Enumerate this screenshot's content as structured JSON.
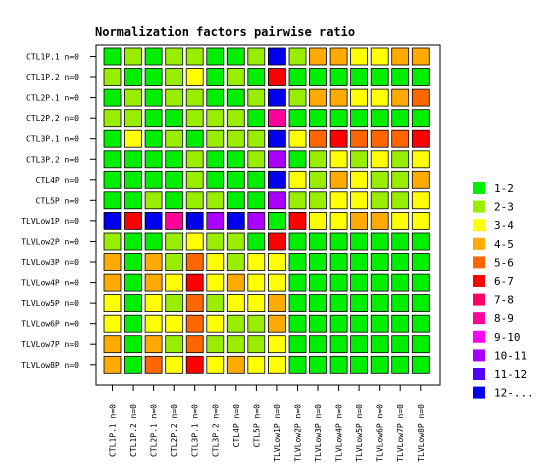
{
  "chart_data": {
    "type": "heatmap",
    "title": "Normalization factors pairwise ratio",
    "rows": [
      "CTL1P.1 n=0",
      "CTL1P.2 n=0",
      "CTL2P.1 n=0",
      "CTL2P.2 n=0",
      "CTL3P.1 n=0",
      "CTL3P.2 n=0",
      "CTL4P n=0",
      "CTL5P n=0",
      "TLVLow1P n=0",
      "TLVLow2P n=0",
      "TLVLow3P n=0",
      "TLVLow4P n=0",
      "TLVLow5P n=0",
      "TLVLow6P n=0",
      "TLVLow7P n=0",
      "TLVLow8P n=0"
    ],
    "columns": [
      "CTL1P.1 n=0",
      "CTL1P.2 n=0",
      "CTL2P.1 n=0",
      "CTL2P.2 n=0",
      "CTL3P.1 n=0",
      "CTL3P.2 n=0",
      "CTL4P n=0",
      "CTL5P n=0",
      "TLVLow1P n=0",
      "TLVLow2P n=0",
      "TLVLow3P n=0",
      "TLVLow4P n=0",
      "TLVLow5P n=0",
      "TLVLow6P n=0",
      "TLVLow7P n=0",
      "TLVLow8P n=0"
    ],
    "legend": {
      "position": "right",
      "bins": [
        {
          "label": "1-2",
          "color": "#00ee00"
        },
        {
          "label": "2-3",
          "color": "#99ee00"
        },
        {
          "label": "3-4",
          "color": "#ffff00"
        },
        {
          "label": "4-5",
          "color": "#ffaa00"
        },
        {
          "label": "5-6",
          "color": "#ff6600"
        },
        {
          "label": "6-7",
          "color": "#ff0000"
        },
        {
          "label": "7-8",
          "color": "#ff0066"
        },
        {
          "label": "8-9",
          "color": "#ff0099"
        },
        {
          "label": "9-10",
          "color": "#ff00ff"
        },
        {
          "label": "10-11",
          "color": "#aa00ff"
        },
        {
          "label": "11-12",
          "color": "#5500ff"
        },
        {
          "label": "12-...",
          "color": "#0000ee"
        }
      ]
    },
    "bin_index_matrix": [
      [
        0,
        1,
        0,
        1,
        1,
        0,
        0,
        1,
        11,
        1,
        3,
        3,
        2,
        2,
        3,
        3
      ],
      [
        1,
        0,
        0,
        1,
        2,
        0,
        1,
        0,
        5,
        0,
        0,
        0,
        0,
        0,
        0,
        0
      ],
      [
        0,
        1,
        0,
        1,
        1,
        0,
        0,
        1,
        11,
        1,
        3,
        3,
        2,
        2,
        3,
        4
      ],
      [
        1,
        1,
        0,
        0,
        1,
        1,
        1,
        0,
        7,
        0,
        0,
        0,
        0,
        0,
        0,
        0
      ],
      [
        0,
        2,
        0,
        1,
        0,
        1,
        1,
        1,
        11,
        2,
        4,
        5,
        4,
        4,
        4,
        5
      ],
      [
        0,
        0,
        0,
        0,
        1,
        0,
        0,
        1,
        9,
        0,
        1,
        2,
        1,
        2,
        1,
        2
      ],
      [
        0,
        0,
        0,
        0,
        1,
        0,
        0,
        0,
        11,
        2,
        1,
        3,
        2,
        1,
        1,
        3
      ],
      [
        0,
        0,
        1,
        0,
        1,
        1,
        0,
        0,
        9,
        1,
        1,
        2,
        2,
        1,
        1,
        2
      ],
      [
        11,
        5,
        11,
        7,
        11,
        9,
        11,
        9,
        0,
        5,
        2,
        2,
        3,
        3,
        2,
        2
      ],
      [
        1,
        0,
        0,
        1,
        2,
        1,
        1,
        0,
        5,
        0,
        0,
        0,
        0,
        0,
        0,
        0
      ],
      [
        3,
        0,
        3,
        1,
        4,
        2,
        1,
        2,
        2,
        0,
        0,
        0,
        0,
        0,
        0,
        0
      ],
      [
        3,
        0,
        3,
        2,
        5,
        2,
        3,
        2,
        2,
        0,
        0,
        0,
        0,
        0,
        0,
        0
      ],
      [
        2,
        0,
        2,
        1,
        4,
        1,
        2,
        2,
        3,
        0,
        0,
        0,
        0,
        0,
        0,
        0
      ],
      [
        2,
        0,
        2,
        2,
        4,
        2,
        1,
        1,
        3,
        0,
        0,
        0,
        0,
        0,
        0,
        0
      ],
      [
        3,
        0,
        3,
        1,
        4,
        1,
        1,
        1,
        2,
        0,
        0,
        0,
        0,
        0,
        0,
        0
      ],
      [
        3,
        0,
        4,
        2,
        5,
        2,
        3,
        2,
        2,
        0,
        0,
        0,
        0,
        0,
        0,
        0
      ]
    ]
  }
}
